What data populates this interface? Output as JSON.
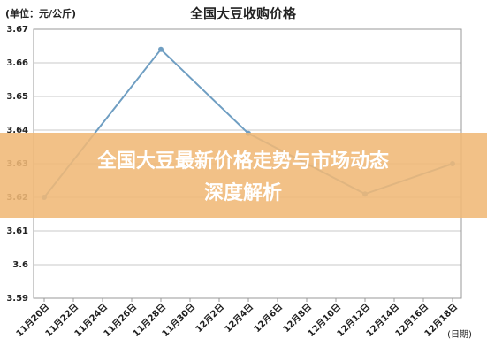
{
  "chart_data": {
    "type": "line",
    "title": "全国大豆收购价格",
    "unit_label": "(单位：元/公斤)",
    "x_label": "(日期)",
    "categories": [
      "11月20日",
      "11月22日",
      "11月24日",
      "11月26日",
      "11月28日",
      "11月30日",
      "12月2日",
      "12月4日",
      "12月6日",
      "12月8日",
      "12月10日",
      "12月12日",
      "12月14日",
      "12月16日",
      "12月18日"
    ],
    "series": [
      {
        "color": "#6f9ec2",
        "x": [
          "11月20日",
          "11月28日",
          "12月4日",
          "12月12日",
          "12月18日"
        ],
        "values": [
          3.62,
          3.664,
          3.639,
          3.621,
          3.63
        ]
      }
    ],
    "ylim": [
      3.59,
      3.67
    ],
    "yticks": [
      3.59,
      3.6,
      3.61,
      3.62,
      3.63,
      3.64,
      3.65,
      3.66,
      3.67
    ],
    "grid": true
  },
  "banner": {
    "lines": [
      "全国大豆最新价格走势与市场动态",
      "深度解析"
    ]
  }
}
